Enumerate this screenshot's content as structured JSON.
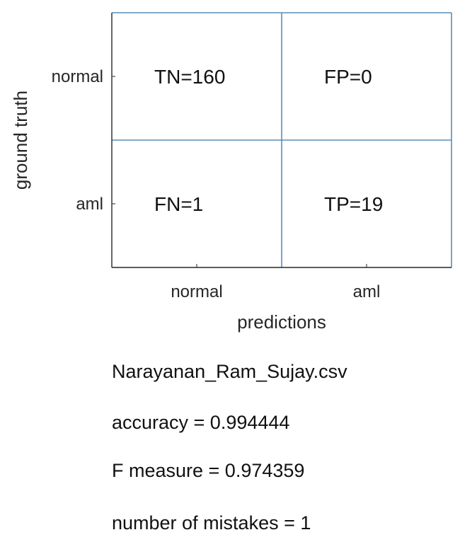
{
  "chart_data": {
    "type": "heatmap",
    "x_label": "predictions",
    "y_label": "ground truth",
    "x_categories": [
      "normal",
      "aml"
    ],
    "y_categories": [
      "normal",
      "aml"
    ],
    "cells": [
      {
        "row": "normal",
        "col": "normal",
        "label": "TN=160",
        "value": 160
      },
      {
        "row": "normal",
        "col": "aml",
        "label": "FP=0",
        "value": 0
      },
      {
        "row": "aml",
        "col": "normal",
        "label": "FN=1",
        "value": 1
      },
      {
        "row": "aml",
        "col": "aml",
        "label": "TP=19",
        "value": 19
      }
    ],
    "grid": true,
    "colors": {
      "grid_line": "#5b8db8",
      "axis_line": "#262626",
      "text": "#262626",
      "background": "#ffffff"
    }
  },
  "summary": {
    "filename": "Narayanan_Ram_Sujay.csv",
    "accuracy": "accuracy = 0.994444",
    "f_measure": "F measure = 0.974359",
    "mistakes": "number of mistakes = 1"
  }
}
